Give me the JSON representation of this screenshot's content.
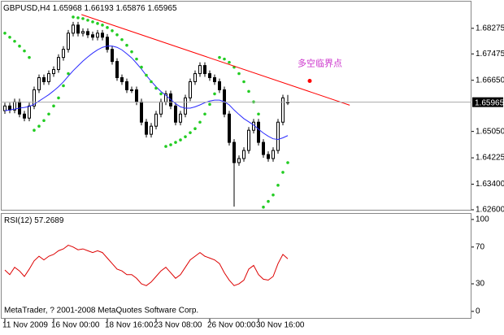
{
  "chart_data": [
    {
      "type": "candlestick",
      "symbol": "GBPUSD,H4",
      "open": [
        1.657,
        1.65846,
        1.6572,
        1.65973,
        1.65593,
        1.65467,
        1.65846,
        1.66352,
        1.66732,
        1.66605,
        1.66858,
        1.66985,
        1.67364,
        1.67617,
        1.68123,
        1.68376,
        1.68123,
        1.68174,
        1.68073,
        1.67997,
        1.68123,
        1.67997,
        1.67617,
        1.67238,
        1.66732,
        1.66605,
        1.66352,
        1.66352,
        1.65973,
        1.6534,
        1.64961,
        1.65214,
        1.65593,
        1.65973,
        1.66226,
        1.65846,
        1.6534,
        1.65593,
        1.66099,
        1.66605,
        1.66858,
        1.67111,
        1.66858,
        1.66732,
        1.66605,
        1.66352,
        1.65593,
        1.64708,
        1.64075,
        1.64202,
        1.64455,
        1.65087,
        1.6534,
        1.64708,
        1.64328,
        1.64202,
        1.64455,
        1.6534,
        1.65968
      ],
      "high": [
        1.65946,
        1.65946,
        1.66073,
        1.66073,
        1.65693,
        1.65946,
        1.66452,
        1.66832,
        1.66832,
        1.66958,
        1.67085,
        1.67464,
        1.67717,
        1.68223,
        1.68476,
        1.68476,
        1.68274,
        1.68274,
        1.68173,
        1.68223,
        1.68223,
        1.68097,
        1.67717,
        1.67338,
        1.66832,
        1.66705,
        1.66452,
        1.66452,
        1.66073,
        1.6544,
        1.65314,
        1.65693,
        1.66073,
        1.66326,
        1.66326,
        1.65946,
        1.65693,
        1.66199,
        1.66705,
        1.66958,
        1.67211,
        1.67211,
        1.66958,
        1.66832,
        1.66705,
        1.66452,
        1.65693,
        1.64808,
        1.64302,
        1.64555,
        1.65187,
        1.6544,
        1.6544,
        1.64808,
        1.64428,
        1.64555,
        1.6544,
        1.66199,
        1.66193
      ],
      "low": [
        1.656,
        1.6562,
        1.6562,
        1.65493,
        1.65367,
        1.65367,
        1.65746,
        1.66252,
        1.66505,
        1.66505,
        1.66758,
        1.66885,
        1.67264,
        1.67517,
        1.68023,
        1.68023,
        1.68023,
        1.67973,
        1.67897,
        1.67897,
        1.67897,
        1.67517,
        1.67138,
        1.66632,
        1.66505,
        1.66252,
        1.66252,
        1.65873,
        1.6524,
        1.64861,
        1.64861,
        1.65114,
        1.65493,
        1.65873,
        1.65746,
        1.6524,
        1.6524,
        1.65493,
        1.65999,
        1.66505,
        1.66758,
        1.66758,
        1.66632,
        1.66505,
        1.66252,
        1.65493,
        1.64608,
        1.627,
        1.63975,
        1.64102,
        1.64355,
        1.64987,
        1.64608,
        1.64228,
        1.64102,
        1.64102,
        1.64355,
        1.6524,
        1.65876
      ],
      "close": [
        1.65846,
        1.6572,
        1.65973,
        1.65593,
        1.65467,
        1.65846,
        1.66352,
        1.66732,
        1.66605,
        1.66858,
        1.66985,
        1.67364,
        1.67617,
        1.68123,
        1.68376,
        1.68123,
        1.68174,
        1.68073,
        1.67997,
        1.68123,
        1.67997,
        1.67617,
        1.67238,
        1.66732,
        1.66605,
        1.66352,
        1.66352,
        1.65973,
        1.6534,
        1.64961,
        1.65214,
        1.65593,
        1.65973,
        1.66226,
        1.65846,
        1.6534,
        1.65593,
        1.66099,
        1.66605,
        1.66858,
        1.67111,
        1.66858,
        1.66732,
        1.66605,
        1.66352,
        1.65593,
        1.64708,
        1.64075,
        1.64202,
        1.64455,
        1.65087,
        1.6534,
        1.64708,
        1.64328,
        1.64202,
        1.64455,
        1.6534,
        1.66099,
        1.65965
      ],
      "up_color": "#ffffff",
      "down_color": "#000000",
      "overlays": [
        {
          "type": "line",
          "color": "#2a2aff",
          "values": [
            1.657,
            1.6572,
            1.6575,
            1.6578,
            1.658,
            1.6583,
            1.659,
            1.66,
            1.661,
            1.662,
            1.6632,
            1.6645,
            1.666,
            1.6678,
            1.6695,
            1.671,
            1.6725,
            1.6738,
            1.675,
            1.676,
            1.6768,
            1.6772,
            1.6772,
            1.6768,
            1.676,
            1.6748,
            1.6735,
            1.6718,
            1.67,
            1.668,
            1.6662,
            1.6645,
            1.663,
            1.6618,
            1.6605,
            1.6592,
            1.6582,
            1.6578,
            1.6578,
            1.6582,
            1.6588,
            1.6595,
            1.66,
            1.6603,
            1.6603,
            1.6598,
            1.6588,
            1.6572,
            1.6558,
            1.6545,
            1.6535,
            1.6525,
            1.6512,
            1.65,
            1.649,
            1.6482,
            1.648,
            1.6485,
            1.6492
          ]
        },
        {
          "type": "scatter",
          "color": "#22cc22",
          "values": [
            1.68123,
            1.67997,
            1.6787,
            1.67718,
            1.67567,
            1.67364,
            1.65087,
            1.65214,
            1.65391,
            1.65593,
            1.65846,
            1.66099,
            1.66479,
            1.66858,
            1.68629,
            1.68604,
            1.68579,
            1.68528,
            1.68477,
            1.68427,
            1.68376,
            1.683,
            1.68199,
            1.68073,
            1.67921,
            1.67744,
            1.67541,
            1.67314,
            1.67061,
            1.66808,
            1.66605,
            1.66403,
            1.66226,
            1.64581,
            1.64632,
            1.64708,
            1.64784,
            1.64885,
            1.65011,
            1.65138,
            1.6534,
            1.65593,
            1.65897,
            1.66226,
            1.67364,
            1.67314,
            1.67212,
            1.67061,
            1.66858,
            1.66605,
            1.66302,
            1.65973,
            1.65593,
            1.62684,
            1.62861,
            1.63063,
            1.63367,
            1.63772,
            1.64075
          ]
        }
      ],
      "trendline": {
        "color": "#ff0000",
        "x": [
          15.7,
          70.7
        ],
        "y": [
          1.68705,
          1.65871
        ]
      },
      "annotation": {
        "text": "多空临界点",
        "color": "#cc33cc",
        "marker_color": "#ff0000",
        "x": 62.5,
        "y": 1.66631
      },
      "ylim": [
        1.626,
        1.69135
      ],
      "yticks": [
        {
          "value": 1.626,
          "label": "1.62600"
        },
        {
          "value": 1.634,
          "label": "1.63400"
        },
        1.64225,
        {
          "value": 1.6505,
          "label": "1.65050"
        },
        {
          "value": 1.6665,
          "label": "1.66650"
        },
        1.67475,
        1.68275
      ],
      "xticks": [
        {
          "value": 0,
          "label": "11 Nov 2009"
        },
        {
          "value": 10,
          "label": "16 Nov 00:00"
        },
        {
          "value": 21,
          "label": "18 Nov 16:00"
        },
        {
          "value": 31,
          "label": "23 Nov 08:00"
        },
        {
          "value": 42,
          "label": "26 Nov 00:00"
        },
        {
          "value": 52,
          "label": "30 Nov 16:00"
        }
      ]
    },
    {
      "type": "line",
      "label": "RSI(12)",
      "color": "#dd0000",
      "values": [
        45,
        40,
        48,
        44,
        38,
        46,
        55,
        60,
        56,
        60,
        62,
        66,
        68,
        72,
        70,
        67,
        68,
        66,
        64,
        66,
        64,
        58,
        52,
        46,
        44,
        40,
        40,
        36,
        30,
        28,
        32,
        38,
        44,
        48,
        42,
        36,
        40,
        48,
        56,
        60,
        64,
        60,
        58,
        56,
        52,
        42,
        34,
        28,
        30,
        34,
        46,
        50,
        40,
        35,
        34,
        38,
        52,
        62,
        57.2689
      ],
      "ylim": [
        -8,
        107
      ],
      "yticks": [
        0,
        30,
        70,
        100
      ],
      "footer": "MetaTrader, ? 2001-2008 MetaQuotes Software Corp."
    }
  ]
}
